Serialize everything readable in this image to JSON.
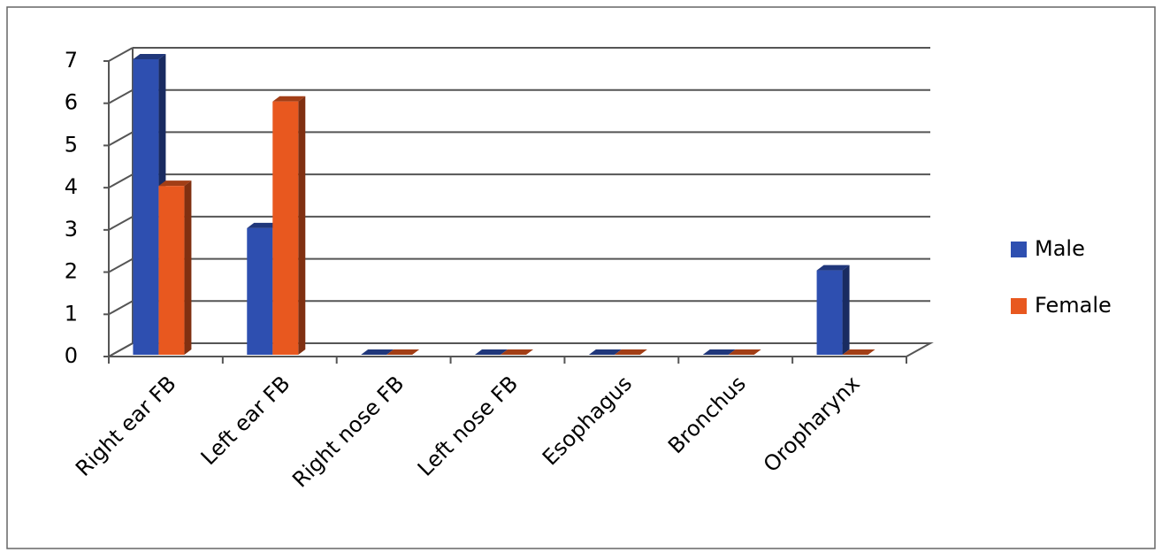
{
  "chart_data": {
    "type": "bar3d",
    "categories": [
      "Right ear FB",
      "Left ear FB",
      "Right nose FB",
      "Left nose FB",
      "Esophagus",
      "Bronchus",
      "Oropharynx"
    ],
    "series": [
      {
        "name": "Male",
        "color": "#2e4fb0",
        "values": [
          7,
          3,
          0,
          0,
          0,
          0,
          2
        ]
      },
      {
        "name": "Female",
        "color": "#e8581f",
        "values": [
          4,
          6,
          0,
          0,
          0,
          0,
          0
        ]
      }
    ],
    "ylim": [
      0,
      7
    ],
    "yticks": [
      0,
      1,
      2,
      3,
      4,
      5,
      6,
      7
    ],
    "grid": true,
    "legend": "right"
  }
}
